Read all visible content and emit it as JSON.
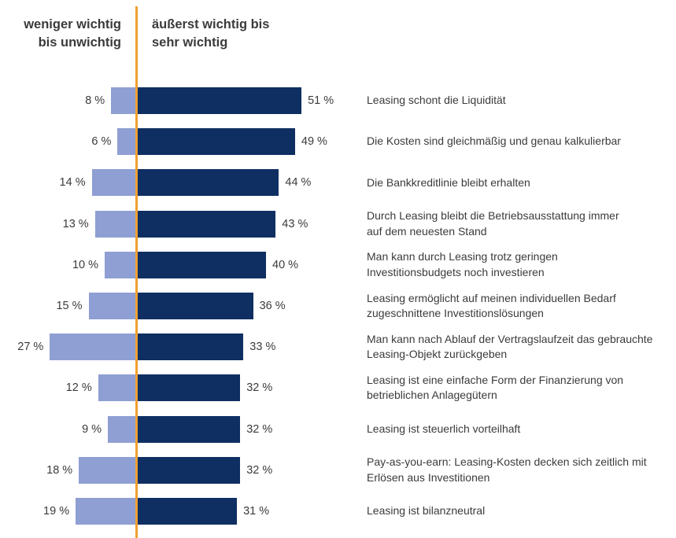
{
  "chart_data": {
    "type": "bar",
    "orientation": "horizontal-diverging",
    "legend": {
      "left_header": [
        "weniger wichtig",
        "bis unwichtig"
      ],
      "right_header": [
        "äußerst wichtig bis",
        "sehr wichtig"
      ]
    },
    "unit": "%",
    "categories": [
      [
        "Leasing schont die Liquidität"
      ],
      [
        "Die Kosten sind gleichmäßig und genau kalkulierbar"
      ],
      [
        "Die Bankkreditlinie bleibt erhalten"
      ],
      [
        "Durch Leasing bleibt die Betriebsausstattung immer",
        "auf dem neuesten Stand"
      ],
      [
        "Man kann durch Leasing trotz geringen",
        "Investitionsbudgets noch investieren"
      ],
      [
        "Leasing ermöglicht auf meinen individuellen Bedarf",
        "zugeschnittene Investitionslösungen"
      ],
      [
        "Man kann nach Ablauf der Vertragslaufzeit das gebrauchte",
        "Leasing-Objekt zurückgeben"
      ],
      [
        "Leasing ist eine einfache Form der Finanzierung von",
        "betrieblichen Anlagegütern"
      ],
      [
        "Leasing ist steuerlich vorteilhaft"
      ],
      [
        "Pay-as-you-earn: Leasing-Kosten decken sich zeitlich mit",
        "Erlösen aus Investitionen"
      ],
      [
        "Leasing ist bilanzneutral"
      ]
    ],
    "series": [
      {
        "name": "weniger wichtig bis unwichtig",
        "color": "#8f9fd3",
        "values": [
          8,
          6,
          14,
          13,
          10,
          15,
          27,
          12,
          9,
          18,
          19
        ]
      },
      {
        "name": "äußerst wichtig bis sehr wichtig",
        "color": "#0f2f63",
        "values": [
          51,
          49,
          44,
          43,
          40,
          36,
          33,
          32,
          32,
          32,
          31
        ]
      }
    ],
    "axis_color": "#f0a030"
  }
}
